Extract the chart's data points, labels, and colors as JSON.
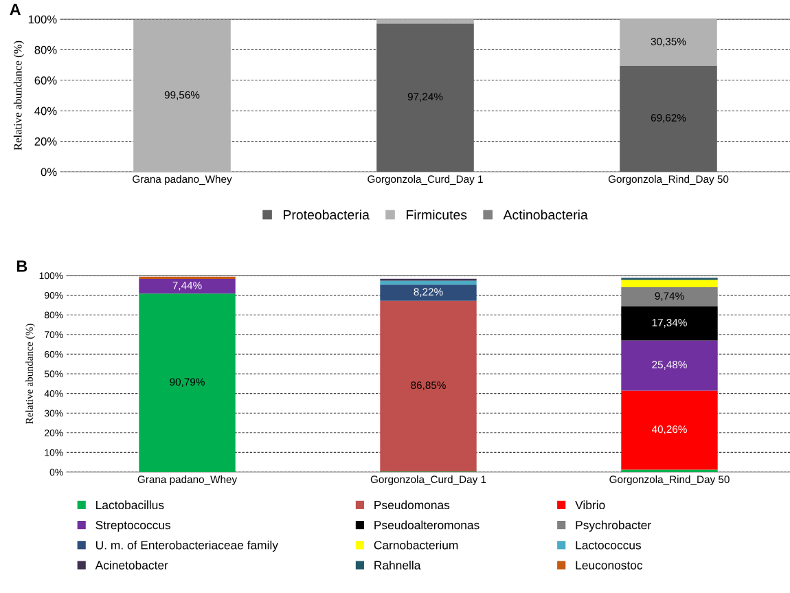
{
  "chart_data": [
    {
      "type": "bar",
      "title": "A",
      "ylabel": "Relative abundance (%)",
      "categories": [
        "Grana padano_Whey",
        "Gorgonzola_Curd_Day 1",
        "Gorgonzola_Rind_Day 50"
      ],
      "stacked": true,
      "ylim": [
        0,
        100
      ],
      "yticks": [
        {
          "value": 0,
          "label": "0%"
        },
        {
          "value": 20,
          "label": "20%"
        },
        {
          "value": 40,
          "label": "40%"
        },
        {
          "value": 60,
          "label": "60%"
        },
        {
          "value": 80,
          "label": "80%"
        },
        {
          "value": 100,
          "label": "100%"
        }
      ],
      "grid": "y",
      "legend": "bottom",
      "series": [
        {
          "name": "Proteobacteria",
          "color": "#606060",
          "values": [
            null,
            97.24,
            69.62
          ],
          "value_labels": [
            null,
            "97,24%",
            "69,62%"
          ]
        },
        {
          "name": "Firmicutes",
          "color": "#b2b2b2",
          "values": [
            99.56,
            2.6,
            30.35
          ],
          "value_labels": [
            "99,56%",
            null,
            "30,35%"
          ]
        },
        {
          "name": "Actinobacteria",
          "color": "#808080",
          "values": [
            null,
            null,
            null
          ],
          "value_labels": [
            null,
            null,
            null
          ]
        }
      ]
    },
    {
      "type": "bar",
      "title": "B",
      "ylabel": "Relative abundance (%)",
      "categories": [
        "Grana padano_Whey",
        "Gorgonzola_Curd_Day 1",
        "Gorgonzola_Rind_Day 50"
      ],
      "stacked": true,
      "ylim": [
        0,
        100
      ],
      "yticks": [
        {
          "value": 0,
          "label": "0%"
        },
        {
          "value": 10,
          "label": "10%"
        },
        {
          "value": 20,
          "label": "20%"
        },
        {
          "value": 30,
          "label": "30%"
        },
        {
          "value": 40,
          "label": "40%"
        },
        {
          "value": 50,
          "label": "50%"
        },
        {
          "value": 60,
          "label": "60%"
        },
        {
          "value": 70,
          "label": "70%"
        },
        {
          "value": 80,
          "label": "80%"
        },
        {
          "value": 90,
          "label": "90%"
        },
        {
          "value": 100,
          "label": "100%"
        }
      ],
      "grid": "y",
      "legend": "bottom",
      "series": [
        {
          "name": "Lactobacillus",
          "color": "#00b050",
          "values": [
            90.79,
            0.3,
            1.2
          ],
          "value_labels": [
            "90,79%",
            null,
            null
          ]
        },
        {
          "name": "Pseudomonas",
          "color": "#c0504d",
          "values": [
            0,
            86.85,
            0
          ],
          "value_labels": [
            null,
            "86,85%",
            null
          ]
        },
        {
          "name": "Vibrio",
          "color": "#ff0000",
          "values": [
            0,
            0,
            40.26
          ],
          "value_labels": [
            null,
            null,
            "40,26%"
          ]
        },
        {
          "name": "Streptococcus",
          "color": "#7030a0",
          "values": [
            7.44,
            0,
            25.48
          ],
          "value_labels": [
            "7,44%",
            null,
            "25,48%"
          ]
        },
        {
          "name": "Pseudoalteromonas",
          "color": "#000000",
          "values": [
            0,
            0,
            17.34
          ],
          "value_labels": [
            null,
            null,
            "17,34%"
          ]
        },
        {
          "name": "Psychrobacter",
          "color": "#808080",
          "values": [
            0,
            0,
            9.74
          ],
          "value_labels": [
            null,
            null,
            "9,74%"
          ]
        },
        {
          "name": "U. m. of Enterobacteriaceae family",
          "color": "#2e4d7b",
          "values": [
            0,
            8.22,
            0
          ],
          "value_labels": [
            null,
            "8,22%",
            null
          ]
        },
        {
          "name": "Carnobacterium",
          "color": "#ffff00",
          "values": [
            0,
            0,
            3.8
          ],
          "value_labels": [
            null,
            null,
            null
          ]
        },
        {
          "name": "Lactococcus",
          "color": "#4bacc6",
          "values": [
            0,
            2.0,
            0
          ],
          "value_labels": [
            null,
            null,
            null
          ]
        },
        {
          "name": "Acinetobacter",
          "color": "#403151",
          "values": [
            0,
            1.0,
            0
          ],
          "value_labels": [
            null,
            null,
            null
          ]
        },
        {
          "name": "Rahnella",
          "color": "#215968",
          "values": [
            0,
            0,
            1.0
          ],
          "value_labels": [
            null,
            null,
            null
          ]
        },
        {
          "name": "Leuconostoc",
          "color": "#c55a11",
          "values": [
            1.2,
            0,
            0
          ],
          "value_labels": [
            null,
            null,
            null
          ]
        }
      ]
    }
  ]
}
